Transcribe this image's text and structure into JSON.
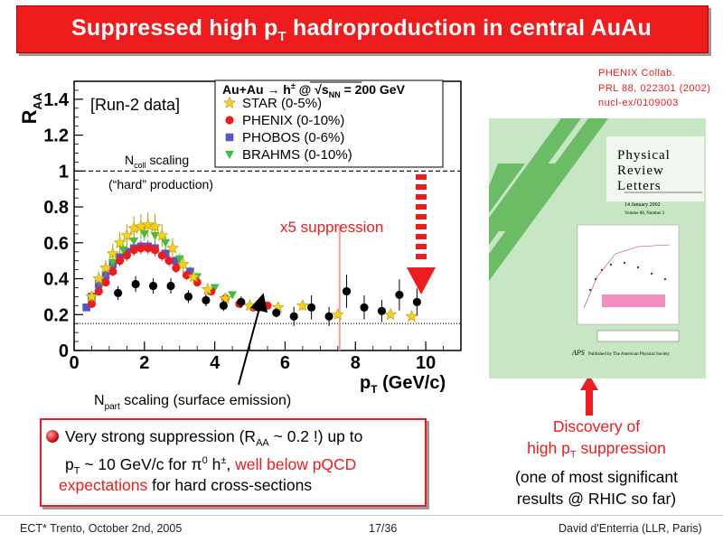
{
  "slide": {
    "title_main": "Suppressed high p",
    "title_sub": "T",
    "title_rest": " hadroproduction in central AuAu",
    "reference": [
      "PHENIX Collab.",
      "PRL 88, 022301 (2002)",
      "nucl-ex/0109003"
    ],
    "footer_left": "ECT* Trento, October 2nd, 2005",
    "footer_center": "17/36",
    "footer_right": "David d'Enterria (LLR, Paris)"
  },
  "annotations": {
    "run2": "[Run-2 data]",
    "ncoll_pre": "N",
    "ncoll_sub": "coll",
    "ncoll_post": " scaling",
    "hard_production": "(“hard” production)",
    "x5": "x5 suppression",
    "npart_pre": "N",
    "npart_sub": "part",
    "npart_post": " scaling (surface emission)"
  },
  "bullet": {
    "line1_pre": "Very strong suppression (R",
    "line1_sub": "AA",
    "line1_post": " ~ 0.2 !) up to",
    "line2_pre": "p",
    "line2_sub": "T",
    "line2_mid": " ~ 10 GeV/c for π",
    "line2_sup0": "0",
    "line2_h": " h",
    "line2_sup_pm": "±",
    "line2_comma": ", ",
    "line2_red": "well below pQCD",
    "line3_red": "expectations",
    "line3_post": " for  hard cross-sections"
  },
  "discovery": {
    "line1": "Discovery of",
    "line2_pre": "high p",
    "line2_sub": "T",
    "line2_post": " suppression",
    "line3": "(one of most significant",
    "line4": "results @ RHIC so far)"
  },
  "journal": {
    "title_lines": [
      "Physical",
      "Review",
      "Letters"
    ],
    "date": "14 January 2002",
    "volume": "Volume 88, Number 2",
    "publisher": "Published by The American Physical Society",
    "aps": "APS"
  },
  "colors": {
    "accent_red": "#ee1c1c",
    "star": "#f2d21c",
    "phenix": "#ee1c1c",
    "phobos": "#5555cc",
    "brahms": "#39c239",
    "pi0_black": "#000000"
  },
  "chart_data": {
    "type": "scatter",
    "xlabel": "p",
    "xlabel_sub": "T",
    "xlabel_unit": " (GeV/c)",
    "ylabel": "R",
    "ylabel_sub": "AA",
    "xlim": [
      0,
      11
    ],
    "ylim": [
      0,
      1.5
    ],
    "x_ticks": [
      0,
      2,
      4,
      6,
      8,
      10
    ],
    "y_ticks": [
      0,
      0.2,
      0.4,
      0.6,
      0.8,
      1,
      1.2,
      1.4
    ],
    "x_tick_labels": [
      "0",
      "2",
      "4",
      "6",
      "8",
      "10"
    ],
    "y_tick_labels": [
      "0",
      "0.2",
      "0.4",
      "0.6",
      "0.8",
      "1",
      "1.2",
      "1.4"
    ],
    "legend_title": "Au+Au → h",
    "legend_title_sup": "±",
    "legend_title_mid": " @ √s",
    "legend_title_sub": "NN",
    "legend_title_post": " = 200 GeV",
    "legend_position": "top-center",
    "reference_lines": [
      {
        "name": "ncoll",
        "y": 1.0,
        "style": "dashed"
      },
      {
        "name": "npart",
        "y": 0.15,
        "style": "dotted"
      }
    ],
    "series": [
      {
        "name": "STAR (0-5%)",
        "marker": "star",
        "color": "#f2d21c",
        "points": [
          [
            0.5,
            0.3
          ],
          [
            0.7,
            0.4
          ],
          [
            0.9,
            0.46
          ],
          [
            1.1,
            0.54
          ],
          [
            1.3,
            0.6
          ],
          [
            1.5,
            0.64
          ],
          [
            1.7,
            0.68
          ],
          [
            1.9,
            0.69
          ],
          [
            2.1,
            0.7
          ],
          [
            2.3,
            0.69
          ],
          [
            2.5,
            0.64
          ],
          [
            2.8,
            0.57
          ],
          [
            3.1,
            0.48
          ],
          [
            3.4,
            0.41
          ],
          [
            3.8,
            0.34
          ],
          [
            4.3,
            0.29
          ],
          [
            5.0,
            0.25
          ],
          [
            5.8,
            0.24
          ],
          [
            6.5,
            0.25
          ],
          [
            7.5,
            0.2
          ],
          [
            9.0,
            0.2
          ],
          [
            9.6,
            0.19
          ]
        ]
      },
      {
        "name": "PHENIX (0-10%)",
        "marker": "circle",
        "color": "#ee1c1c",
        "points": [
          [
            0.5,
            0.26
          ],
          [
            0.7,
            0.33
          ],
          [
            0.9,
            0.38
          ],
          [
            1.1,
            0.44
          ],
          [
            1.3,
            0.5
          ],
          [
            1.5,
            0.53
          ],
          [
            1.7,
            0.56
          ],
          [
            1.9,
            0.57
          ],
          [
            2.1,
            0.57
          ],
          [
            2.3,
            0.56
          ],
          [
            2.5,
            0.53
          ],
          [
            2.7,
            0.5
          ],
          [
            2.9,
            0.46
          ],
          [
            3.2,
            0.42
          ],
          [
            3.5,
            0.38
          ],
          [
            3.9,
            0.33
          ],
          [
            4.3,
            0.29
          ],
          [
            4.7,
            0.26
          ],
          [
            5.1,
            0.24
          ],
          [
            5.5,
            0.25
          ]
        ]
      },
      {
        "name": "PHOBOS (0-6%)",
        "marker": "square",
        "color": "#5555cc",
        "points": [
          [
            0.35,
            0.24
          ],
          [
            0.5,
            0.3
          ],
          [
            0.7,
            0.37
          ],
          [
            0.9,
            0.42
          ],
          [
            1.1,
            0.48
          ],
          [
            1.3,
            0.52
          ],
          [
            1.5,
            0.55
          ],
          [
            1.7,
            0.57
          ],
          [
            1.9,
            0.58
          ],
          [
            2.1,
            0.58
          ],
          [
            2.3,
            0.57
          ],
          [
            2.6,
            0.54
          ],
          [
            2.9,
            0.5
          ],
          [
            3.3,
            0.44
          ]
        ]
      },
      {
        "name": "BRAHMS (0-10%)",
        "marker": "triangle",
        "color": "#39c239",
        "points": [
          [
            0.5,
            0.28
          ],
          [
            0.8,
            0.38
          ],
          [
            1.1,
            0.49
          ],
          [
            1.4,
            0.56
          ],
          [
            1.7,
            0.61
          ],
          [
            2.0,
            0.65
          ],
          [
            2.3,
            0.64
          ],
          [
            2.6,
            0.6
          ],
          [
            3.0,
            0.51
          ],
          [
            3.5,
            0.41
          ],
          [
            4.0,
            0.35
          ],
          [
            4.5,
            0.31
          ]
        ]
      },
      {
        "name": "π0",
        "marker": "circle",
        "color": "#000000",
        "points": [
          [
            1.25,
            0.32
          ],
          [
            1.75,
            0.37
          ],
          [
            2.25,
            0.36
          ],
          [
            2.75,
            0.36
          ],
          [
            3.25,
            0.3
          ],
          [
            3.75,
            0.28
          ],
          [
            4.25,
            0.25
          ],
          [
            4.75,
            0.27
          ],
          [
            5.25,
            0.24
          ],
          [
            5.75,
            0.21
          ],
          [
            6.25,
            0.19
          ],
          [
            6.75,
            0.24
          ],
          [
            7.25,
            0.19
          ],
          [
            7.75,
            0.33
          ],
          [
            8.25,
            0.24
          ],
          [
            8.75,
            0.22
          ],
          [
            9.25,
            0.31
          ],
          [
            9.75,
            0.27
          ]
        ]
      }
    ]
  }
}
